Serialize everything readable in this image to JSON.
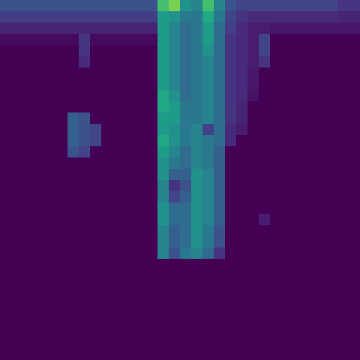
{
  "chart_data": {
    "type": "heatmap",
    "color": "viridis",
    "tick_labels": false,
    "zlim": [
      0,
      1
    ],
    "cells": [
      [
        0.25,
        0.25,
        0.25,
        0.25,
        0.25,
        0.25,
        0.25,
        0.25,
        0.25,
        0.25,
        0.25,
        0.25,
        0.25,
        0.25,
        0.7,
        0.8,
        0.5,
        0.45,
        0.7,
        0.45,
        0.25,
        0.2,
        0.2,
        0.2,
        0.2,
        0.2,
        0.2,
        0.2,
        0.2,
        0.2,
        0.15,
        0.15
      ],
      [
        0.18,
        0.18,
        0.18,
        0.18,
        0.18,
        0.18,
        0.18,
        0.18,
        0.18,
        0.18,
        0.18,
        0.18,
        0.18,
        0.18,
        0.55,
        0.5,
        0.4,
        0.4,
        0.6,
        0.4,
        0.2,
        0.15,
        0.12,
        0.12,
        0.12,
        0.12,
        0.12,
        0.12,
        0.12,
        0.12,
        0.1,
        0.1
      ],
      [
        0.1,
        0.1,
        0.1,
        0.1,
        0.1,
        0.1,
        0.1,
        0.1,
        0.1,
        0.1,
        0.1,
        0.1,
        0.1,
        0.1,
        0.55,
        0.45,
        0.35,
        0.4,
        0.55,
        0.35,
        0.18,
        0.12,
        0.08,
        0.08,
        0.06,
        0.06,
        0.06,
        0.06,
        0.06,
        0.06,
        0.06,
        0.06
      ],
      [
        0.03,
        0.03,
        0.03,
        0.03,
        0.03,
        0.03,
        0.03,
        0.15,
        0.03,
        0.03,
        0.03,
        0.03,
        0.03,
        0.03,
        0.55,
        0.45,
        0.35,
        0.4,
        0.55,
        0.35,
        0.15,
        0.12,
        0.08,
        0.2,
        0,
        0,
        0,
        0,
        0,
        0,
        0,
        0
      ],
      [
        0,
        0,
        0,
        0,
        0,
        0,
        0,
        0.15,
        0,
        0,
        0,
        0,
        0,
        0,
        0.55,
        0.45,
        0.35,
        0.4,
        0.5,
        0.35,
        0.15,
        0.12,
        0.08,
        0.2,
        0,
        0,
        0,
        0,
        0,
        0,
        0,
        0
      ],
      [
        0,
        0,
        0,
        0,
        0,
        0,
        0,
        0.12,
        0,
        0,
        0,
        0,
        0,
        0,
        0.55,
        0.45,
        0.35,
        0.4,
        0.45,
        0.35,
        0.15,
        0.12,
        0.08,
        0.15,
        0,
        0,
        0,
        0,
        0,
        0,
        0,
        0
      ],
      [
        0,
        0,
        0,
        0,
        0,
        0,
        0,
        0,
        0,
        0,
        0,
        0,
        0,
        0,
        0.55,
        0.45,
        0.35,
        0.4,
        0.45,
        0.35,
        0.15,
        0.12,
        0.06,
        0,
        0,
        0,
        0,
        0,
        0,
        0,
        0,
        0
      ],
      [
        0,
        0,
        0,
        0,
        0,
        0,
        0,
        0,
        0,
        0,
        0,
        0,
        0,
        0,
        0.55,
        0.45,
        0.35,
        0.4,
        0.45,
        0.35,
        0.15,
        0.12,
        0.06,
        0,
        0,
        0,
        0,
        0,
        0,
        0,
        0,
        0
      ],
      [
        0,
        0,
        0,
        0,
        0,
        0,
        0,
        0,
        0,
        0,
        0,
        0,
        0,
        0,
        0.6,
        0.5,
        0.35,
        0.4,
        0.45,
        0.35,
        0.15,
        0.12,
        0.05,
        0,
        0,
        0,
        0,
        0,
        0,
        0,
        0,
        0
      ],
      [
        0,
        0,
        0,
        0,
        0,
        0,
        0,
        0,
        0,
        0,
        0,
        0,
        0,
        0,
        0.6,
        0.55,
        0.4,
        0.4,
        0.45,
        0.35,
        0.15,
        0.1,
        0,
        0,
        0,
        0,
        0,
        0,
        0,
        0,
        0,
        0
      ],
      [
        0,
        0,
        0,
        0,
        0,
        0,
        0.3,
        0.25,
        0,
        0,
        0,
        0,
        0,
        0,
        0.55,
        0.55,
        0.4,
        0.4,
        0.45,
        0.35,
        0.15,
        0.1,
        0,
        0,
        0,
        0,
        0,
        0,
        0,
        0,
        0,
        0
      ],
      [
        0,
        0,
        0,
        0,
        0,
        0,
        0.3,
        0.25,
        0.2,
        0,
        0,
        0,
        0,
        0,
        0.55,
        0.5,
        0.4,
        0.45,
        0.2,
        0.35,
        0.12,
        0.08,
        0,
        0,
        0,
        0,
        0,
        0,
        0,
        0,
        0,
        0
      ],
      [
        0,
        0,
        0,
        0,
        0,
        0,
        0.3,
        0.25,
        0.2,
        0,
        0,
        0,
        0,
        0,
        0.6,
        0.5,
        0.4,
        0.45,
        0.4,
        0.35,
        0.12,
        0,
        0,
        0,
        0,
        0,
        0,
        0,
        0,
        0,
        0,
        0
      ],
      [
        0,
        0,
        0,
        0,
        0,
        0,
        0.25,
        0.2,
        0,
        0,
        0,
        0,
        0,
        0,
        0.55,
        0.45,
        0.35,
        0.45,
        0.4,
        0.3,
        0,
        0,
        0,
        0,
        0,
        0,
        0,
        0,
        0,
        0,
        0,
        0
      ],
      [
        0,
        0,
        0,
        0,
        0,
        0,
        0,
        0,
        0,
        0,
        0,
        0,
        0,
        0,
        0.5,
        0.4,
        0.35,
        0.45,
        0.4,
        0.3,
        0,
        0,
        0,
        0,
        0,
        0,
        0,
        0,
        0,
        0,
        0,
        0
      ],
      [
        0,
        0,
        0,
        0,
        0,
        0,
        0,
        0,
        0,
        0,
        0,
        0,
        0,
        0,
        0.5,
        0.3,
        0.3,
        0.5,
        0.45,
        0.3,
        0,
        0,
        0,
        0,
        0,
        0,
        0,
        0,
        0,
        0,
        0,
        0
      ],
      [
        0,
        0,
        0,
        0,
        0,
        0,
        0,
        0,
        0,
        0,
        0,
        0,
        0,
        0,
        0.45,
        0.15,
        0.25,
        0.5,
        0.45,
        0.3,
        0,
        0,
        0,
        0,
        0,
        0,
        0,
        0,
        0,
        0,
        0,
        0
      ],
      [
        0,
        0,
        0,
        0,
        0,
        0,
        0,
        0,
        0,
        0,
        0,
        0,
        0,
        0,
        0.45,
        0.2,
        0.3,
        0.5,
        0.45,
        0.3,
        0,
        0,
        0,
        0,
        0,
        0,
        0,
        0,
        0,
        0,
        0,
        0
      ],
      [
        0,
        0,
        0,
        0,
        0,
        0,
        0,
        0,
        0,
        0,
        0,
        0,
        0,
        0,
        0.5,
        0.35,
        0.35,
        0.5,
        0.45,
        0.3,
        0,
        0,
        0,
        0,
        0,
        0,
        0,
        0,
        0,
        0,
        0,
        0
      ],
      [
        0,
        0,
        0,
        0,
        0,
        0,
        0,
        0,
        0,
        0,
        0,
        0,
        0,
        0,
        0.5,
        0.35,
        0.35,
        0.5,
        0.45,
        0.3,
        0,
        0,
        0,
        0.08,
        0,
        0,
        0,
        0,
        0,
        0,
        0,
        0
      ],
      [
        0,
        0,
        0,
        0,
        0,
        0,
        0,
        0,
        0,
        0,
        0,
        0,
        0,
        0,
        0.45,
        0.3,
        0.35,
        0.5,
        0.4,
        0.25,
        0,
        0,
        0,
        0,
        0,
        0,
        0,
        0,
        0,
        0,
        0,
        0
      ],
      [
        0,
        0,
        0,
        0,
        0,
        0,
        0,
        0,
        0,
        0,
        0,
        0,
        0,
        0,
        0.45,
        0.3,
        0.35,
        0.5,
        0.4,
        0.25,
        0,
        0,
        0,
        0,
        0,
        0,
        0,
        0,
        0,
        0,
        0,
        0
      ],
      [
        0,
        0,
        0,
        0,
        0,
        0,
        0,
        0,
        0,
        0,
        0,
        0,
        0,
        0,
        0.45,
        0.25,
        0.4,
        0.45,
        0.35,
        0.15,
        0,
        0,
        0,
        0,
        0,
        0,
        0,
        0,
        0,
        0,
        0,
        0
      ],
      [
        0,
        0,
        0,
        0,
        0,
        0,
        0,
        0,
        0,
        0,
        0,
        0,
        0,
        0,
        0,
        0,
        0,
        0,
        0,
        0,
        0,
        0,
        0,
        0,
        0,
        0,
        0,
        0,
        0,
        0,
        0,
        0
      ],
      [
        0,
        0,
        0,
        0,
        0,
        0,
        0,
        0,
        0,
        0,
        0,
        0,
        0,
        0,
        0,
        0,
        0,
        0,
        0,
        0,
        0,
        0,
        0,
        0,
        0,
        0,
        0,
        0,
        0,
        0,
        0,
        0
      ],
      [
        0,
        0,
        0,
        0,
        0,
        0,
        0,
        0,
        0,
        0,
        0,
        0,
        0,
        0,
        0,
        0,
        0,
        0,
        0,
        0,
        0,
        0,
        0,
        0,
        0,
        0,
        0,
        0,
        0,
        0,
        0,
        0
      ],
      [
        0,
        0,
        0,
        0,
        0,
        0,
        0,
        0,
        0,
        0,
        0,
        0,
        0,
        0,
        0,
        0,
        0,
        0,
        0,
        0,
        0,
        0,
        0,
        0,
        0,
        0,
        0,
        0,
        0,
        0,
        0,
        0
      ],
      [
        0,
        0,
        0,
        0,
        0,
        0,
        0,
        0,
        0,
        0,
        0,
        0,
        0,
        0,
        0,
        0,
        0,
        0,
        0,
        0,
        0,
        0,
        0,
        0,
        0,
        0,
        0,
        0,
        0,
        0,
        0,
        0
      ],
      [
        0,
        0,
        0,
        0,
        0,
        0,
        0,
        0,
        0,
        0,
        0,
        0,
        0,
        0,
        0,
        0,
        0,
        0,
        0,
        0,
        0,
        0,
        0,
        0,
        0,
        0,
        0,
        0,
        0,
        0,
        0,
        0
      ],
      [
        0,
        0,
        0,
        0,
        0,
        0,
        0,
        0,
        0,
        0,
        0,
        0,
        0,
        0,
        0,
        0,
        0,
        0,
        0,
        0,
        0,
        0,
        0,
        0,
        0,
        0,
        0,
        0,
        0,
        0,
        0,
        0
      ],
      [
        0,
        0,
        0,
        0,
        0,
        0,
        0,
        0,
        0,
        0,
        0,
        0,
        0,
        0,
        0,
        0,
        0,
        0,
        0,
        0,
        0,
        0,
        0,
        0,
        0,
        0,
        0,
        0,
        0,
        0,
        0,
        0
      ],
      [
        0,
        0,
        0,
        0,
        0,
        0,
        0,
        0,
        0,
        0,
        0,
        0,
        0,
        0,
        0,
        0,
        0,
        0,
        0,
        0,
        0,
        0,
        0,
        0,
        0,
        0,
        0,
        0,
        0,
        0,
        0,
        0
      ]
    ]
  }
}
